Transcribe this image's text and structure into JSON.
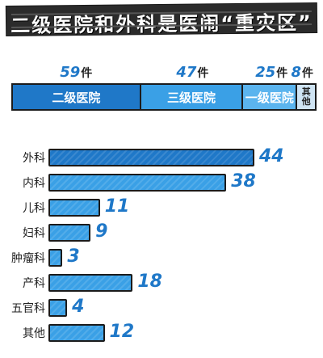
{
  "title": "二级医院和外科是医闹“重灾区”",
  "stack": {
    "unit": "件",
    "segments": [
      {
        "label": "二级医院",
        "value": 59,
        "color": "#1f78c8"
      },
      {
        "label": "三级医院",
        "value": 47,
        "color": "#3aa0e6"
      },
      {
        "label": "一级医院",
        "value": 25,
        "color": "#5bb4ee"
      },
      {
        "label": "其他",
        "value": 8,
        "color": "#cfe4f3"
      }
    ]
  },
  "chart_data": {
    "type": "bar",
    "orientation": "horizontal",
    "categories": [
      "外科",
      "内科",
      "儿科",
      "妇科",
      "肿瘤科",
      "产科",
      "五官科",
      "其他"
    ],
    "values": [
      44,
      38,
      11,
      9,
      3,
      18,
      4,
      12
    ],
    "colors": [
      "#1f78c8",
      "#3aa0e6",
      "#3aa0e6",
      "#3aa0e6",
      "#3aa0e6",
      "#3aa0e6",
      "#3aa0e6",
      "#3aa0e6"
    ]
  }
}
